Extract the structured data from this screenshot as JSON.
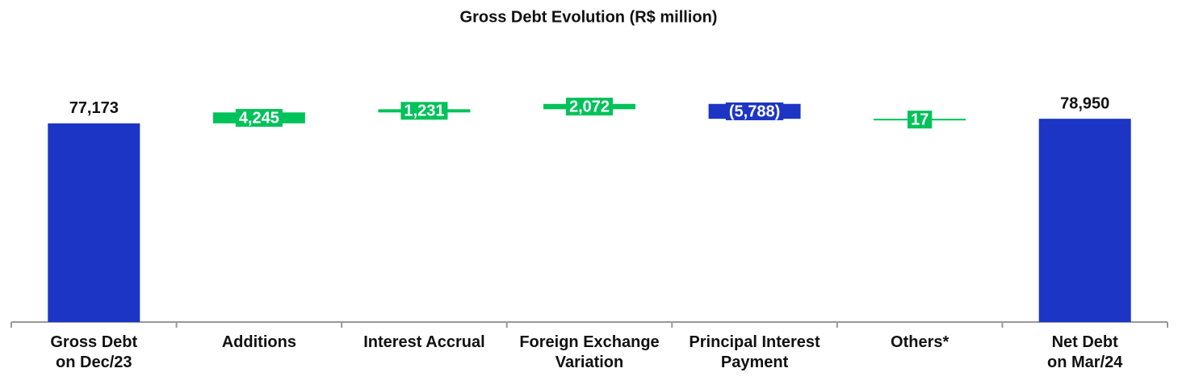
{
  "chart_data": {
    "type": "waterfall",
    "title": "Gross Debt Evolution (R$ million)",
    "categories": [
      "Gross Debt\non Dec/23",
      "Additions",
      "Interest Accrual",
      "Foreign Exchange\nVariation",
      "Principal Interest\nPayment",
      "Others*",
      "Net Debt\non Mar/24"
    ],
    "values": [
      77173,
      4245,
      1231,
      2072,
      -5788,
      17,
      78950
    ],
    "value_labels": [
      "77,173",
      "4,245",
      "1,231",
      "2,072",
      "(5,788)",
      "17",
      "78,950"
    ],
    "colors": [
      "#1c35c4",
      "#00c25a",
      "#00c25a",
      "#00c25a",
      "#1c35c4",
      "#00c25a",
      "#1c35c4"
    ],
    "ylim": [
      0,
      100000
    ]
  }
}
